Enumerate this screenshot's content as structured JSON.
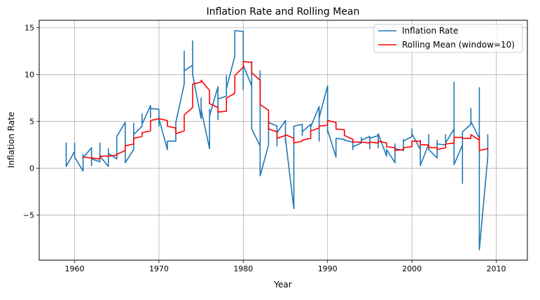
{
  "chart_data": {
    "type": "line",
    "title": "Inflation Rate and Rolling Mean",
    "xlabel": "Year",
    "ylabel": "Inflation Rate",
    "xlim": [
      1955.8,
      2013.7
    ],
    "ylim": [
      -9.8,
      15.8
    ],
    "x_ticks": [
      1960,
      1970,
      1980,
      1990,
      2000,
      2010
    ],
    "y_ticks": [
      -5,
      0,
      5,
      10,
      15
    ],
    "grid": true,
    "legend_position": "top-right",
    "series": [
      {
        "name": "Inflation Rate",
        "color": "#1f77b4",
        "points": [
          [
            1959.0,
            0.2
          ],
          [
            1959.0,
            2.7
          ],
          [
            1959.0,
            0.2
          ],
          [
            1960.0,
            1.8
          ],
          [
            1960.0,
            2.7
          ],
          [
            1960.0,
            1.2
          ],
          [
            1961.0,
            -0.3
          ],
          [
            1961.0,
            1.5
          ],
          [
            1961.0,
            1.1
          ],
          [
            1962.0,
            2.2
          ],
          [
            1962.0,
            0.3
          ],
          [
            1962.0,
            1.0
          ],
          [
            1963.0,
            0.7
          ],
          [
            1963.0,
            2.7
          ],
          [
            1963.0,
            1.3
          ],
          [
            1964.0,
            0.2
          ],
          [
            1964.0,
            2.1
          ],
          [
            1964.0,
            1.6
          ],
          [
            1965.0,
            1.0
          ],
          [
            1965.0,
            2.8
          ],
          [
            1965.0,
            3.4
          ],
          [
            1966.0,
            4.9
          ],
          [
            1966.0,
            0.6
          ],
          [
            1967.0,
            2.0
          ],
          [
            1967.0,
            4.8
          ],
          [
            1967.0,
            3.6
          ],
          [
            1968.0,
            4.5
          ],
          [
            1968.0,
            5.8
          ],
          [
            1968.0,
            4.7
          ],
          [
            1969.0,
            6.7
          ],
          [
            1969.0,
            5.4
          ],
          [
            1969.0,
            6.4
          ],
          [
            1970.0,
            6.3
          ],
          [
            1970.0,
            4.5
          ],
          [
            1970.0,
            5.3
          ],
          [
            1971.0,
            2.0
          ],
          [
            1971.0,
            2.9
          ],
          [
            1972.0,
            2.9
          ],
          [
            1972.0,
            4.9
          ],
          [
            1973.0,
            9.0
          ],
          [
            1973.0,
            12.5
          ],
          [
            1973.0,
            10.4
          ],
          [
            1974.0,
            11.0
          ],
          [
            1974.0,
            13.6
          ],
          [
            1974.0,
            10.0
          ],
          [
            1975.0,
            5.3
          ],
          [
            1975.0,
            7.5
          ],
          [
            1975.0,
            6.3
          ],
          [
            1976.0,
            2.1
          ],
          [
            1976.0,
            6.3
          ],
          [
            1976.0,
            5.6
          ],
          [
            1977.0,
            8.7
          ],
          [
            1977.0,
            5.2
          ],
          [
            1977.0,
            7.4
          ],
          [
            1978.0,
            7.7
          ],
          [
            1978.0,
            9.9
          ],
          [
            1978.0,
            8.5
          ],
          [
            1979.0,
            12.0
          ],
          [
            1979.0,
            14.7
          ],
          [
            1979.0,
            14.7
          ],
          [
            1980.0,
            14.6
          ],
          [
            1980.0,
            8.4
          ],
          [
            1980.0,
            11.0
          ],
          [
            1981.0,
            8.8
          ],
          [
            1981.0,
            11.4
          ],
          [
            1981.0,
            4.2
          ],
          [
            1982.0,
            2.4
          ],
          [
            1982.0,
            10.4
          ],
          [
            1982.0,
            -0.8
          ],
          [
            1983.0,
            2.5
          ],
          [
            1983.0,
            5.1
          ],
          [
            1983.0,
            4.9
          ],
          [
            1984.0,
            4.5
          ],
          [
            1984.0,
            2.4
          ],
          [
            1984.0,
            3.8
          ],
          [
            1985.0,
            5.1
          ],
          [
            1985.0,
            2.8
          ],
          [
            1985.0,
            3.2
          ],
          [
            1986.0,
            -4.3
          ],
          [
            1986.0,
            4.3
          ],
          [
            1986.0,
            4.5
          ],
          [
            1987.0,
            4.7
          ],
          [
            1987.0,
            3.5
          ],
          [
            1987.0,
            3.9
          ],
          [
            1988.0,
            4.7
          ],
          [
            1988.0,
            4.1
          ],
          [
            1988.0,
            4.4
          ],
          [
            1989.0,
            6.6
          ],
          [
            1989.0,
            2.9
          ],
          [
            1989.0,
            5.4
          ],
          [
            1990.0,
            8.8
          ],
          [
            1990.0,
            3.8
          ],
          [
            1990.0,
            4.1
          ],
          [
            1991.0,
            1.2
          ],
          [
            1991.0,
            3.2
          ],
          [
            1991.0,
            3.2
          ],
          [
            1992.0,
            3.1
          ],
          [
            1992.0,
            3.0
          ],
          [
            1993.0,
            2.8
          ],
          [
            1993.0,
            2.0
          ],
          [
            1993.0,
            2.3
          ],
          [
            1994.0,
            2.7
          ],
          [
            1994.0,
            3.3
          ],
          [
            1994.0,
            3.0
          ],
          [
            1995.0,
            3.4
          ],
          [
            1995.0,
            2.1
          ],
          [
            1995.0,
            3.2
          ],
          [
            1996.0,
            3.5
          ],
          [
            1996.0,
            2.2
          ],
          [
            1996.0,
            3.7
          ],
          [
            1997.0,
            1.3
          ],
          [
            1997.0,
            2.0
          ],
          [
            1998.0,
            0.6
          ],
          [
            1998.0,
            2.6
          ],
          [
            1998.0,
            2.1
          ],
          [
            1999.0,
            1.9
          ],
          [
            1999.0,
            3.1
          ],
          [
            1999.0,
            2.9
          ],
          [
            2000.0,
            3.4
          ],
          [
            2000.0,
            4.2
          ],
          [
            2000.0,
            3.7
          ],
          [
            2001.0,
            2.0
          ],
          [
            2001.0,
            3.0
          ],
          [
            2001.0,
            0.3
          ],
          [
            2002.0,
            2.6
          ],
          [
            2002.0,
            3.6
          ],
          [
            2002.0,
            2.0
          ],
          [
            2003.0,
            1.1
          ],
          [
            2003.0,
            3.0
          ],
          [
            2003.0,
            2.6
          ],
          [
            2004.0,
            2.5
          ],
          [
            2004.0,
            3.6
          ],
          [
            2004.0,
            2.7
          ],
          [
            2005.0,
            4.2
          ],
          [
            2005.0,
            9.2
          ],
          [
            2005.0,
            0.4
          ],
          [
            2006.0,
            2.5
          ],
          [
            2006.0,
            -1.6
          ],
          [
            2006.0,
            3.9
          ],
          [
            2007.0,
            4.7
          ],
          [
            2007.0,
            6.4
          ],
          [
            2007.0,
            5.0
          ],
          [
            2008.0,
            3.2
          ],
          [
            2008.0,
            8.6
          ],
          [
            2008.0,
            -8.7
          ],
          [
            2009.0,
            1.2
          ],
          [
            2009.0,
            3.6
          ]
        ]
      },
      {
        "name": "Rolling Mean (window=10)",
        "color": "#ff0000",
        "points": [
          [
            1961.0,
            1.2
          ],
          [
            1962.0,
            1.1
          ],
          [
            1963.0,
            1.0
          ],
          [
            1963.0,
            1.3
          ],
          [
            1964.0,
            1.3
          ],
          [
            1965.0,
            1.4
          ],
          [
            1965.0,
            1.5
          ],
          [
            1966.0,
            1.9
          ],
          [
            1966.0,
            2.4
          ],
          [
            1967.0,
            2.6
          ],
          [
            1967.0,
            3.2
          ],
          [
            1968.0,
            3.4
          ],
          [
            1968.0,
            3.8
          ],
          [
            1969.0,
            4.0
          ],
          [
            1969.0,
            5.1
          ],
          [
            1970.0,
            5.3
          ],
          [
            1971.0,
            5.1
          ],
          [
            1971.0,
            4.5
          ],
          [
            1972.0,
            4.3
          ],
          [
            1972.0,
            3.7
          ],
          [
            1973.0,
            4.0
          ],
          [
            1973.0,
            5.7
          ],
          [
            1974.0,
            6.5
          ],
          [
            1974.0,
            9.0
          ],
          [
            1975.0,
            9.2
          ],
          [
            1975.0,
            9.4
          ],
          [
            1976.0,
            8.3
          ],
          [
            1976.0,
            6.9
          ],
          [
            1977.0,
            6.5
          ],
          [
            1977.0,
            6.0
          ],
          [
            1978.0,
            6.1
          ],
          [
            1978.0,
            7.5
          ],
          [
            1979.0,
            8.0
          ],
          [
            1979.0,
            9.9
          ],
          [
            1980.0,
            10.8
          ],
          [
            1980.0,
            11.4
          ],
          [
            1981.0,
            11.3
          ],
          [
            1981.0,
            10.2
          ],
          [
            1982.0,
            9.4
          ],
          [
            1982.0,
            6.8
          ],
          [
            1983.0,
            6.2
          ],
          [
            1983.0,
            4.2
          ],
          [
            1984.0,
            3.9
          ],
          [
            1984.0,
            3.2
          ],
          [
            1985.0,
            3.5
          ],
          [
            1985.0,
            3.6
          ],
          [
            1986.0,
            3.2
          ],
          [
            1986.0,
            2.7
          ],
          [
            1987.0,
            2.9
          ],
          [
            1987.0,
            3.0
          ],
          [
            1988.0,
            3.2
          ],
          [
            1988.0,
            4.0
          ],
          [
            1989.0,
            4.3
          ],
          [
            1989.0,
            4.5
          ],
          [
            1990.0,
            4.6
          ],
          [
            1990.0,
            5.1
          ],
          [
            1991.0,
            4.9
          ],
          [
            1991.0,
            4.2
          ],
          [
            1992.0,
            4.1
          ],
          [
            1992.0,
            3.5
          ],
          [
            1993.0,
            3.1
          ],
          [
            1993.0,
            2.8
          ],
          [
            1994.0,
            2.8
          ],
          [
            1995.0,
            2.7
          ],
          [
            1995.0,
            2.8
          ],
          [
            1996.0,
            2.7
          ],
          [
            1996.0,
            2.9
          ],
          [
            1997.0,
            2.7
          ],
          [
            1997.0,
            2.3
          ],
          [
            1998.0,
            2.2
          ],
          [
            1998.0,
            1.9
          ],
          [
            1999.0,
            2.0
          ],
          [
            1999.0,
            2.2
          ],
          [
            2000.0,
            2.3
          ],
          [
            2000.0,
            2.9
          ],
          [
            2001.0,
            2.9
          ],
          [
            2001.0,
            2.5
          ],
          [
            2002.0,
            2.5
          ],
          [
            2002.0,
            2.2
          ],
          [
            2003.0,
            2.2
          ],
          [
            2003.0,
            2.0
          ],
          [
            2004.0,
            2.2
          ],
          [
            2004.0,
            2.6
          ],
          [
            2005.0,
            2.7
          ],
          [
            2005.0,
            3.3
          ],
          [
            2006.0,
            3.3
          ],
          [
            2006.0,
            3.2
          ],
          [
            2007.0,
            3.2
          ],
          [
            2007.0,
            3.6
          ],
          [
            2008.0,
            3.0
          ],
          [
            2008.0,
            3.4
          ],
          [
            2008.0,
            1.9
          ],
          [
            2009.0,
            2.1
          ]
        ]
      }
    ]
  }
}
